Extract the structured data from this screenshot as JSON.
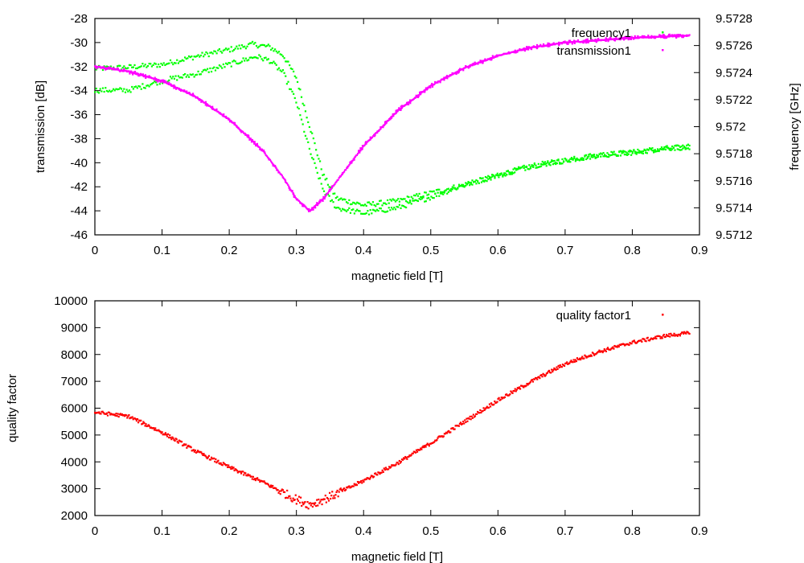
{
  "chart_data": [
    {
      "type": "scatter",
      "xlabel": "magnetic field [T]",
      "ylabel": "transmission [dB]",
      "y2label": "frequency [GHz]",
      "xlim": [
        0,
        0.9
      ],
      "ylim": [
        -46,
        -28
      ],
      "y2lim": [
        9.5712,
        9.5728
      ],
      "xticks": [
        "0",
        "0.1",
        "0.2",
        "0.3",
        "0.4",
        "0.5",
        "0.6",
        "0.7",
        "0.8",
        "0.9"
      ],
      "yticks": [
        "-46",
        "-44",
        "-42",
        "-40",
        "-38",
        "-36",
        "-34",
        "-32",
        "-30",
        "-28"
      ],
      "y2ticks": [
        "9.5712",
        "9.5714",
        "9.5716",
        "9.5718",
        "9.572",
        "9.5722",
        "9.5724",
        "9.5726",
        "9.5728"
      ],
      "legend_position": "top-right",
      "series": [
        {
          "name": "frequency1",
          "axis": "y2",
          "color": "#00ff00",
          "branches": [
            {
              "x": [
                0,
                0.05,
                0.1,
                0.15,
                0.2,
                0.235,
                0.26,
                0.28,
                0.3,
                0.32,
                0.34,
                0.36,
                0.4,
                0.45,
                0.5,
                0.55,
                0.6,
                0.65,
                0.7,
                0.75,
                0.8,
                0.85,
                0.885
              ],
              "y": [
                9.57243,
                9.57244,
                9.57246,
                9.57252,
                9.57257,
                9.57261,
                9.57259,
                9.57253,
                9.57236,
                9.572,
                9.57164,
                9.57147,
                9.57142,
                9.57145,
                9.57151,
                9.57157,
                9.57164,
                9.57171,
                9.57175,
                9.57179,
                9.57181,
                9.57184,
                9.57185
              ]
            },
            {
              "x": [
                0,
                0.05,
                0.1,
                0.15,
                0.2,
                0.24,
                0.26,
                0.28,
                0.3,
                0.32,
                0.34,
                0.36,
                0.4,
                0.45,
                0.5,
                0.55,
                0.6,
                0.65,
                0.7,
                0.75,
                0.8,
                0.85,
                0.885
              ],
              "y": [
                9.57227,
                9.57227,
                9.57234,
                9.57239,
                9.57246,
                9.57252,
                9.57249,
                9.5724,
                9.57218,
                9.57182,
                9.57153,
                9.5714,
                9.57136,
                9.5714,
                9.57148,
                9.57157,
                9.57164,
                9.57171,
                9.57175,
                9.57179,
                9.57181,
                9.57184,
                9.57185
              ]
            }
          ]
        },
        {
          "name": "transmission1",
          "axis": "y",
          "color": "#ff00ff",
          "branches": [
            {
              "x": [
                0,
                0.05,
                0.1,
                0.15,
                0.2,
                0.25,
                0.28,
                0.3,
                0.32,
                0.34,
                0.37,
                0.4,
                0.45,
                0.5,
                0.55,
                0.6,
                0.65,
                0.7,
                0.75,
                0.8,
                0.885
              ],
              "y": [
                -32,
                -32.4,
                -33.2,
                -34.5,
                -36.4,
                -39,
                -41.2,
                -43,
                -44,
                -43,
                -40.8,
                -38.6,
                -35.7,
                -33.6,
                -32.1,
                -31.1,
                -30.4,
                -30,
                -29.8,
                -29.6,
                -29.4
              ]
            }
          ]
        }
      ]
    },
    {
      "type": "scatter",
      "xlabel": "magnetic field [T]",
      "ylabel": "quality factor",
      "xlim": [
        0,
        0.9
      ],
      "ylim": [
        2000,
        10000
      ],
      "xticks": [
        "0",
        "0.1",
        "0.2",
        "0.3",
        "0.4",
        "0.5",
        "0.6",
        "0.7",
        "0.8",
        "0.9"
      ],
      "yticks": [
        "2000",
        "3000",
        "4000",
        "5000",
        "6000",
        "7000",
        "8000",
        "9000",
        "10000"
      ],
      "legend_position": "top-right",
      "series": [
        {
          "name": "quality factor1",
          "axis": "y",
          "color": "#ff0000",
          "branches": [
            {
              "x": [
                0,
                0.05,
                0.1,
                0.15,
                0.2,
                0.25,
                0.3,
                0.32,
                0.35,
                0.4,
                0.45,
                0.5,
                0.55,
                0.6,
                0.65,
                0.7,
                0.75,
                0.8,
                0.85,
                0.885
              ],
              "y": [
                5850,
                5700,
                5100,
                4400,
                3800,
                3250,
                2600,
                2400,
                2700,
                3300,
                3950,
                4700,
                5500,
                6300,
                7000,
                7650,
                8100,
                8450,
                8700,
                8800
              ]
            }
          ]
        }
      ]
    }
  ]
}
